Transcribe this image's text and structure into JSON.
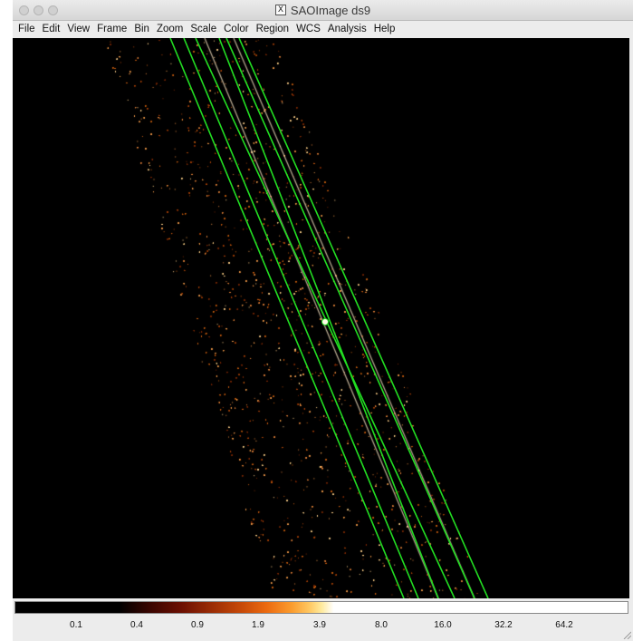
{
  "window": {
    "title": "SAOImage ds9"
  },
  "menu": [
    "File",
    "Edit",
    "View",
    "Frame",
    "Bin",
    "Zoom",
    "Scale",
    "Color",
    "Region",
    "WCS",
    "Analysis",
    "Help"
  ],
  "colorbar": {
    "colormap": "heat",
    "labels": [
      "0.1",
      "0.4",
      "0.9",
      "1.9",
      "3.9",
      "8.0",
      "16.0",
      "32.2",
      "64.2"
    ]
  },
  "colors": {
    "region": "#22dd22",
    "background": "#000000",
    "events": "#e07a30"
  },
  "icons": [
    "x11-icon",
    "resize-grip-icon"
  ]
}
